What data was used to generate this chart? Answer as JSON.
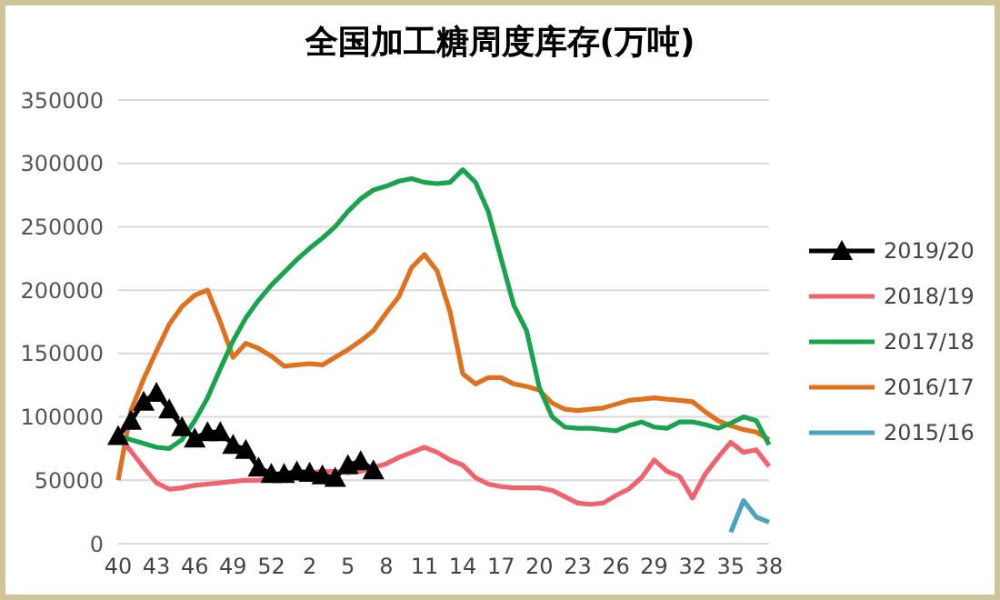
{
  "chart_data": {
    "type": "line",
    "title": "全国加工糖周度库存(万吨)",
    "categories": [
      "40",
      null,
      null,
      "43",
      null,
      null,
      "46",
      null,
      null,
      "49",
      null,
      null,
      "52",
      null,
      null,
      "2",
      null,
      null,
      "5",
      null,
      null,
      "8",
      null,
      null,
      "11",
      null,
      null,
      "14",
      null,
      null,
      "17",
      null,
      null,
      "20",
      null,
      null,
      "23",
      null,
      null,
      "26",
      null,
      null,
      "29",
      null,
      null,
      "32",
      null,
      null,
      "35",
      null,
      null,
      "38"
    ],
    "series": [
      {
        "name": "2019/20",
        "color": "#000000",
        "marker": "triangle",
        "values": [
          85000,
          97000,
          112000,
          119000,
          106000,
          92000,
          83000,
          88000,
          88000,
          78000,
          74000,
          60000,
          55000,
          55000,
          57000,
          56000,
          54000,
          52000,
          62000,
          65000,
          58000,
          null,
          null,
          null,
          null,
          null,
          null,
          null,
          null,
          null,
          null,
          null,
          null,
          null,
          null,
          null,
          null,
          null,
          null,
          null,
          null,
          null,
          null,
          null,
          null,
          null,
          null,
          null,
          null,
          null,
          null,
          null
        ]
      },
      {
        "name": "2018/19",
        "color": "#f0636c",
        "values": [
          85000,
          73000,
          60000,
          48000,
          43000,
          44000,
          46000,
          47000,
          48000,
          49000,
          50000,
          50000,
          51000,
          52000,
          54000,
          56000,
          57000,
          57000,
          56000,
          57000,
          60000,
          63000,
          68000,
          72000,
          76000,
          72000,
          66000,
          62000,
          52000,
          47000,
          45000,
          44000,
          44000,
          44000,
          42000,
          37000,
          32000,
          31000,
          32000,
          38000,
          43000,
          52000,
          66000,
          57000,
          53000,
          36000,
          55000,
          68000,
          80000,
          72000,
          74000,
          61000
        ]
      },
      {
        "name": "2017/18",
        "color": "#17a44c",
        "values": [
          85000,
          82000,
          79000,
          76000,
          75000,
          82000,
          97000,
          115000,
          138000,
          160000,
          178000,
          192000,
          204000,
          214000,
          224000,
          233000,
          241000,
          250000,
          262000,
          272000,
          279000,
          282000,
          286000,
          288000,
          285000,
          284000,
          285000,
          295000,
          285000,
          262000,
          225000,
          188000,
          168000,
          123000,
          100000,
          92000,
          91000,
          91000,
          90000,
          89000,
          93000,
          96000,
          92000,
          91000,
          96000,
          96000,
          94000,
          91000,
          95000,
          100000,
          97000,
          78000
        ]
      },
      {
        "name": "2016/17",
        "color": "#e0701c",
        "values": [
          50000,
          105000,
          130000,
          152000,
          173000,
          187000,
          196000,
          200000,
          175000,
          147000,
          158000,
          154000,
          148000,
          140000,
          141000,
          142000,
          141000,
          147000,
          153000,
          160000,
          168000,
          182000,
          195000,
          218000,
          228000,
          215000,
          183000,
          134000,
          126000,
          131000,
          131000,
          126000,
          124000,
          121000,
          111000,
          106000,
          105000,
          106000,
          107000,
          110000,
          113000,
          114000,
          115000,
          114000,
          113000,
          112000,
          104000,
          97000,
          93000,
          90000,
          88000,
          82000
        ]
      },
      {
        "name": "2015/16",
        "color": "#4aa3c0",
        "values": [
          null,
          null,
          null,
          null,
          null,
          null,
          null,
          null,
          null,
          null,
          null,
          null,
          null,
          null,
          null,
          null,
          null,
          null,
          null,
          null,
          null,
          null,
          null,
          null,
          null,
          null,
          null,
          null,
          null,
          null,
          null,
          null,
          null,
          null,
          null,
          null,
          null,
          null,
          null,
          null,
          null,
          null,
          null,
          null,
          null,
          null,
          null,
          null,
          9000,
          34000,
          21000,
          17000
        ]
      }
    ],
    "ylim": [
      0,
      350000
    ],
    "yticks": [
      0,
      50000,
      100000,
      150000,
      200000,
      250000,
      300000,
      350000
    ],
    "grid": "y",
    "legend": "right",
    "marker": "none"
  }
}
